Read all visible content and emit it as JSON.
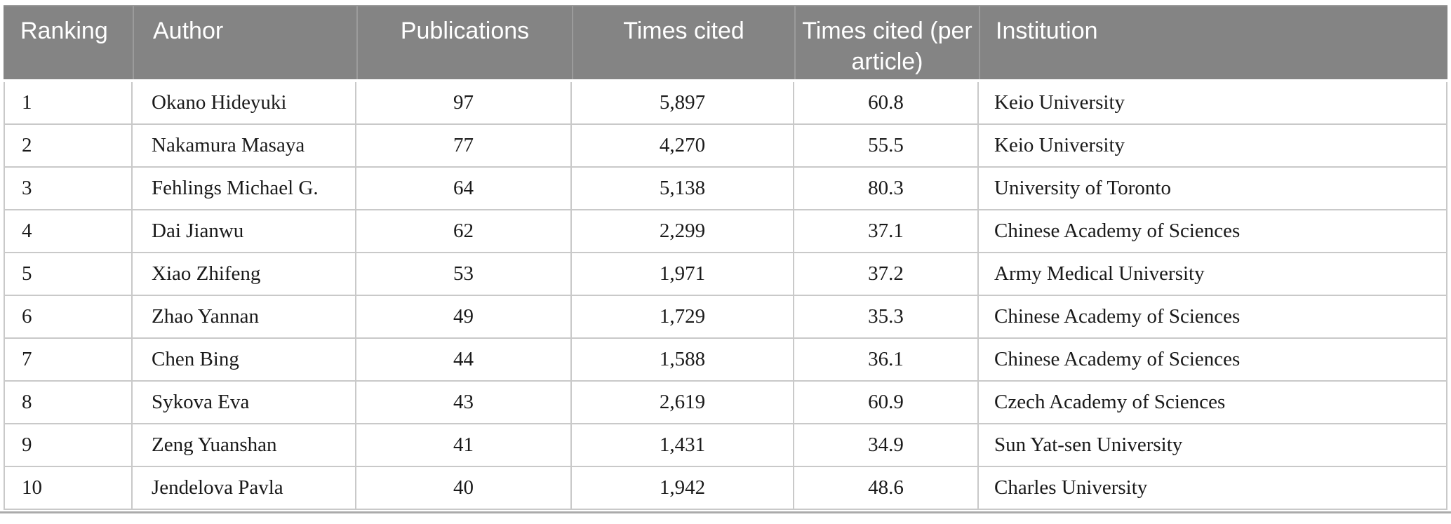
{
  "table": {
    "columns": [
      {
        "key": "ranking",
        "label": "Ranking",
        "align": "left"
      },
      {
        "key": "author",
        "label": "Author",
        "align": "left"
      },
      {
        "key": "publications",
        "label": "Publications",
        "align": "center"
      },
      {
        "key": "times-cited",
        "label": "Times cited",
        "align": "center"
      },
      {
        "key": "times-cited-per-article",
        "label": "Times cited (per article)",
        "align": "center"
      },
      {
        "key": "institution",
        "label": "Institution",
        "align": "left"
      }
    ],
    "rows": [
      [
        "1",
        "Okano Hideyuki",
        "97",
        "5,897",
        "60.8",
        "Keio University"
      ],
      [
        "2",
        "Nakamura Masaya",
        "77",
        "4,270",
        "55.5",
        "Keio University"
      ],
      [
        "3",
        "Fehlings Michael G.",
        "64",
        "5,138",
        "80.3",
        "University of Toronto"
      ],
      [
        "4",
        "Dai Jianwu",
        "62",
        "2,299",
        "37.1",
        "Chinese Academy of Sciences"
      ],
      [
        "5",
        "Xiao Zhifeng",
        "53",
        "1,971",
        "37.2",
        "Army Medical University"
      ],
      [
        "6",
        "Zhao Yannan",
        "49",
        "1,729",
        "35.3",
        "Chinese Academy of Sciences"
      ],
      [
        "7",
        "Chen Bing",
        "44",
        "1,588",
        "36.1",
        "Chinese Academy of Sciences"
      ],
      [
        "8",
        "Sykova Eva",
        "43",
        "2,619",
        "60.9",
        "Czech Academy of Sciences"
      ],
      [
        "9",
        "Zeng Yuanshan",
        "41",
        "1,431",
        "34.9",
        "Sun Yat-sen University"
      ],
      [
        "10",
        "Jendelova Pavla",
        "40",
        "1,942",
        "48.6",
        "Charles University"
      ]
    ]
  },
  "colors": {
    "header_bg": "#848484",
    "header_text": "#ffffff",
    "header_divider": "#9b9b9b",
    "body_border": "#c9c9c9",
    "body_text": "#1a1a1a",
    "bottom_rule": "#ababab",
    "page_bg": "#ffffff"
  }
}
